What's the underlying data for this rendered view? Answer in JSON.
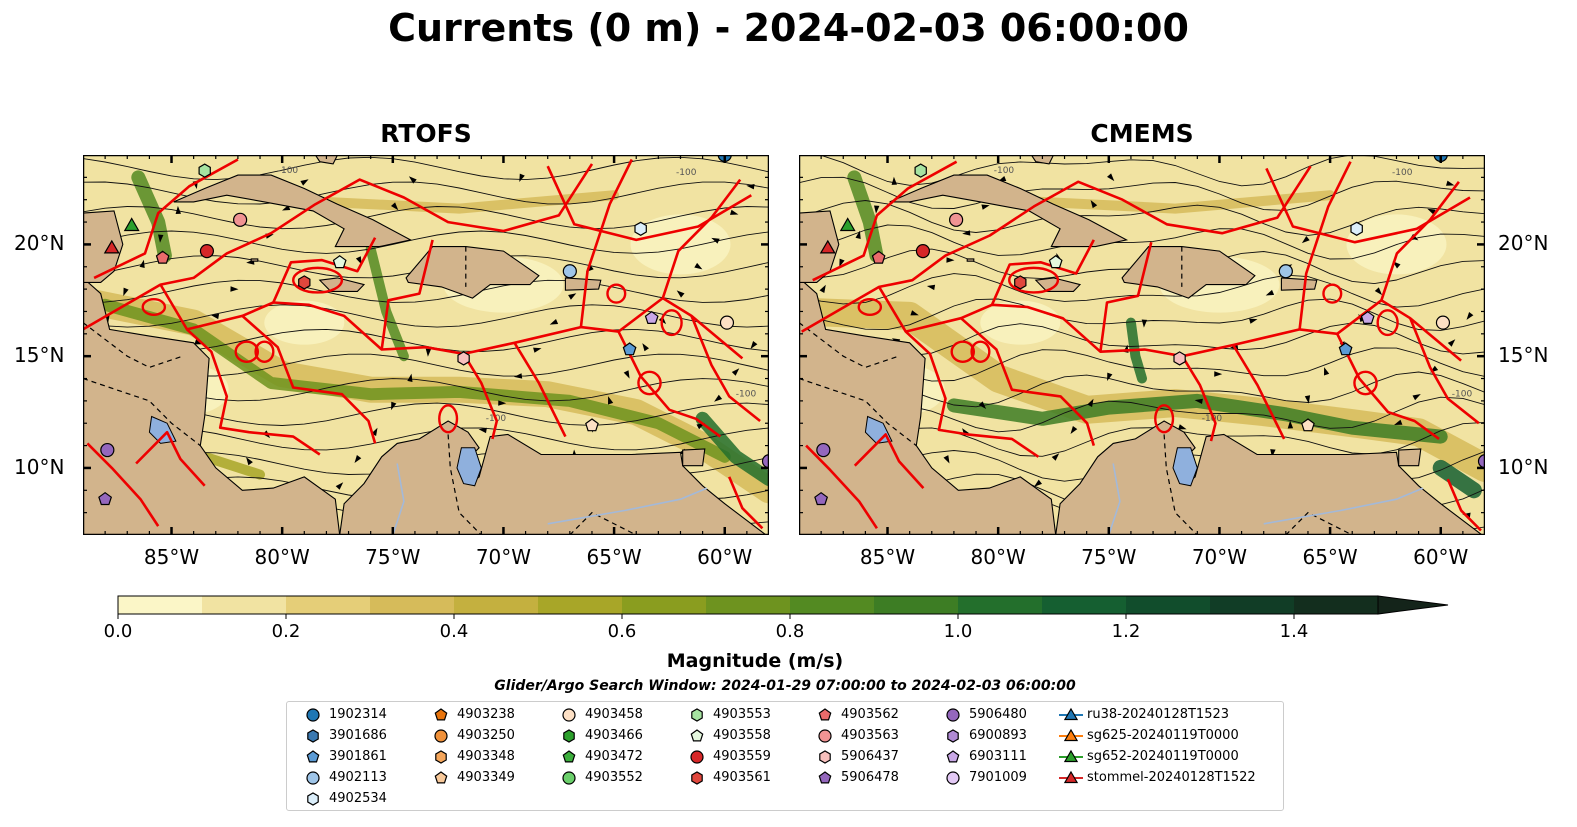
{
  "title": "Currents (0 m) - 2024-02-03 06:00:00",
  "panels": [
    {
      "title": "RTOFS"
    },
    {
      "title": "CMEMS"
    }
  ],
  "axes": {
    "lon_labels": [
      "85°W",
      "80°W",
      "75°W",
      "70°W",
      "65°W",
      "60°W"
    ],
    "lat_labels": [
      "20°N",
      "15°N",
      "10°N"
    ],
    "lon_range": [
      -89,
      -58
    ],
    "lat_range": [
      7,
      24
    ],
    "contour_label": "-100"
  },
  "colorbar": {
    "title": "Magnitude (m/s)",
    "ticks": [
      "0.0",
      "0.2",
      "0.4",
      "0.6",
      "0.8",
      "1.0",
      "1.2",
      "1.4"
    ],
    "range": [
      0,
      1.5
    ],
    "extend": "max",
    "colors": [
      "#fbf6c7",
      "#f1e3a2",
      "#e5ce78",
      "#d6bb5a",
      "#c4b03f",
      "#a8a628",
      "#8a9d1f",
      "#6e931f",
      "#538a22",
      "#3d7d24",
      "#236f2c",
      "#155f31",
      "#114d2c",
      "#113d26",
      "#132e1e",
      "#14241a"
    ]
  },
  "search_window": "Glider/Argo Search Window: 2024-01-29 07:00:00 to 2024-02-03 06:00:00",
  "legend": {
    "columns": [
      [
        {
          "label": "1902314",
          "marker": "circle",
          "color": "#1f77b4"
        },
        {
          "label": "3901686",
          "marker": "hexagon",
          "color": "#3a78b0"
        },
        {
          "label": "3901861",
          "marker": "pentagon",
          "color": "#5b9bd5"
        },
        {
          "label": "4902113",
          "marker": "circle",
          "color": "#9fc5e8"
        },
        {
          "label": "4902534",
          "marker": "hexagon",
          "color": "#dbeefa"
        }
      ],
      [
        {
          "label": "4903238",
          "marker": "pentagon",
          "color": "#e8740c"
        },
        {
          "label": "4903250",
          "marker": "circle",
          "color": "#f0913a"
        },
        {
          "label": "4903348",
          "marker": "hexagon",
          "color": "#f5a65b"
        },
        {
          "label": "4903349",
          "marker": "pentagon",
          "color": "#f8c99a"
        }
      ],
      [
        {
          "label": "4903458",
          "marker": "circle",
          "color": "#fde0c5"
        },
        {
          "label": "4903466",
          "marker": "hexagon",
          "color": "#2ca02c"
        },
        {
          "label": "4903472",
          "marker": "pentagon",
          "color": "#3cae3c"
        },
        {
          "label": "4903552",
          "marker": "circle",
          "color": "#6bcf6b"
        }
      ],
      [
        {
          "label": "4903553",
          "marker": "hexagon",
          "color": "#a6e3a1"
        },
        {
          "label": "4903558",
          "marker": "pentagon",
          "color": "#e5f8df"
        },
        {
          "label": "4903559",
          "marker": "circle",
          "color": "#d62728"
        },
        {
          "label": "4903561",
          "marker": "hexagon",
          "color": "#e0473d"
        }
      ],
      [
        {
          "label": "4903562",
          "marker": "pentagon",
          "color": "#ea6b6b"
        },
        {
          "label": "4903563",
          "marker": "circle",
          "color": "#f09393"
        },
        {
          "label": "5906437",
          "marker": "hexagon",
          "color": "#f7c0bd"
        },
        {
          "label": "5906478",
          "marker": "pentagon",
          "color": "#9467bd"
        }
      ],
      [
        {
          "label": "5906480",
          "marker": "circle",
          "color": "#9467bd"
        },
        {
          "label": "6900893",
          "marker": "hexagon",
          "color": "#b08ad4"
        },
        {
          "label": "6903111",
          "marker": "pentagon",
          "color": "#c9a8e6"
        },
        {
          "label": "7901009",
          "marker": "circle",
          "color": "#e3c9f5"
        }
      ],
      [
        {
          "label": "ru38-20240128T1523",
          "marker": "triangle-line",
          "color": "#1f77b4"
        },
        {
          "label": "sg625-20240119T0000",
          "marker": "triangle-line",
          "color": "#ff7f0e"
        },
        {
          "label": "sg652-20240119T0000",
          "marker": "triangle-line",
          "color": "#2ca02c"
        },
        {
          "label": "stommel-20240128T1522",
          "marker": "triangle-line",
          "color": "#d62728"
        }
      ]
    ]
  }
}
